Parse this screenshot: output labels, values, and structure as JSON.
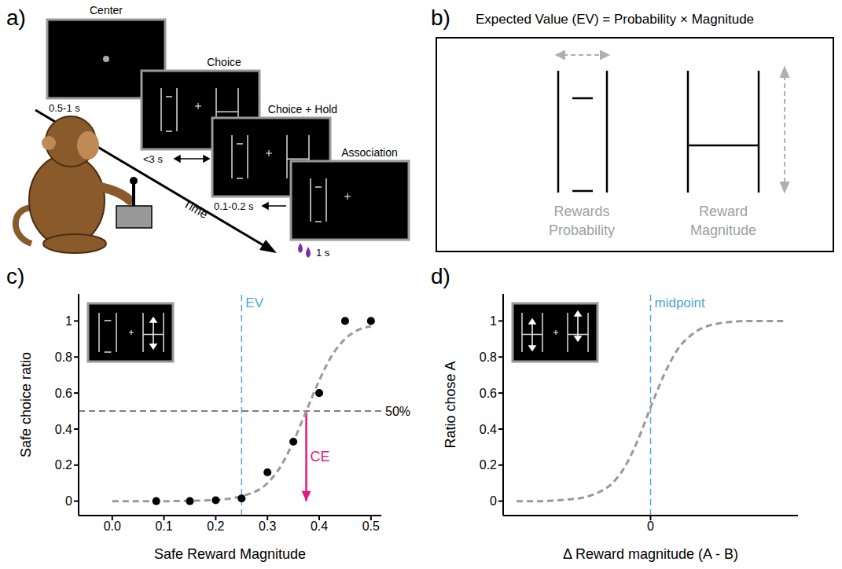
{
  "panel_a": {
    "letter": "a)",
    "screens": [
      {
        "title": "Center",
        "duration": "0.5-1 s"
      },
      {
        "title": "Choice",
        "duration": "<3 s"
      },
      {
        "title": "Choice + Hold",
        "duration": "0.1-0.2 s"
      },
      {
        "title": "Association",
        "duration": "1 s"
      }
    ],
    "time_label": "Time"
  },
  "panel_b": {
    "letter": "b)",
    "title": "Expected Value (EV) = Probability × Magnitude",
    "labels": [
      "Rewards Probability",
      "Reward Magnitude"
    ]
  },
  "chart_data": [
    {
      "letter": "c)",
      "type": "scatter",
      "x_label": "Safe Reward Magnitude",
      "y_label": "Safe choice ratio",
      "xlim": [
        -0.065,
        0.52
      ],
      "ylim": [
        -0.08,
        1.15
      ],
      "xticks": [
        {
          "value": 0,
          "label": "0.0"
        },
        0.1,
        0.2,
        0.3,
        0.4,
        0.5
      ],
      "yticks": [
        0,
        0.2,
        0.4,
        0.6,
        0.8,
        1
      ],
      "series": [
        {
          "type": "scatter",
          "color": "#000000",
          "marker": "circle",
          "x": [
            0.085,
            0.15,
            0.2,
            0.25,
            0.3,
            0.35,
            0.4,
            0.45,
            0.5
          ],
          "values": [
            0,
            0,
            0.005,
            0.015,
            0.16,
            0.33,
            0.6,
            1.0,
            1.0
          ]
        },
        {
          "type": "line",
          "color": "#9a9a9a",
          "line_style": "dashed",
          "x": [
            0,
            0.05,
            0.1,
            0.15,
            0.2,
            0.25,
            0.3,
            0.325,
            0.35,
            0.375,
            0.4,
            0.425,
            0.45,
            0.475,
            0.5
          ],
          "values": [
            0,
            0,
            0,
            0.002,
            0.007,
            0.028,
            0.1,
            0.19,
            0.33,
            0.5,
            0.67,
            0.81,
            0.9,
            0.95,
            0.97
          ]
        }
      ],
      "annotations": [
        {
          "label": "EV",
          "x": 0.25,
          "color": "#4da6d9",
          "line_style": "dashed"
        },
        {
          "label": "50%",
          "y": 0.5,
          "color": "#555555",
          "line_style": "dashed"
        },
        {
          "label": "CE",
          "x": 0.375,
          "y": [
            0.5,
            0
          ],
          "color": "#e0197d"
        }
      ]
    },
    {
      "letter": "d)",
      "type": "line",
      "x_label": "Δ Reward magnitude (A - B)",
      "y_label": "Ratio chose A",
      "xlim": [
        -1.1,
        1.1
      ],
      "ylim": [
        -0.08,
        1.15
      ],
      "xticks": [
        0
      ],
      "yticks": [
        0,
        0.2,
        0.4,
        0.6,
        0.8,
        1
      ],
      "series": [
        {
          "type": "line",
          "color": "#9a9a9a",
          "line_style": "dashed",
          "x": [
            -1,
            -0.9,
            -0.8,
            -0.7,
            -0.6,
            -0.5,
            -0.4,
            -0.3,
            -0.2,
            -0.1,
            0,
            0.1,
            0.2,
            0.3,
            0.4,
            0.5,
            0.6,
            0.7,
            0.8,
            0.9,
            1
          ],
          "values": [
            0,
            0,
            0,
            0.005,
            0.01,
            0.02,
            0.045,
            0.09,
            0.18,
            0.33,
            0.52,
            0.7,
            0.84,
            0.92,
            0.965,
            0.985,
            0.995,
            1,
            1,
            1,
            1
          ]
        }
      ],
      "annotations": [
        {
          "label": "midpoint",
          "x": 0,
          "color": "#4da6d9",
          "line_style": "dashed"
        }
      ]
    }
  ]
}
